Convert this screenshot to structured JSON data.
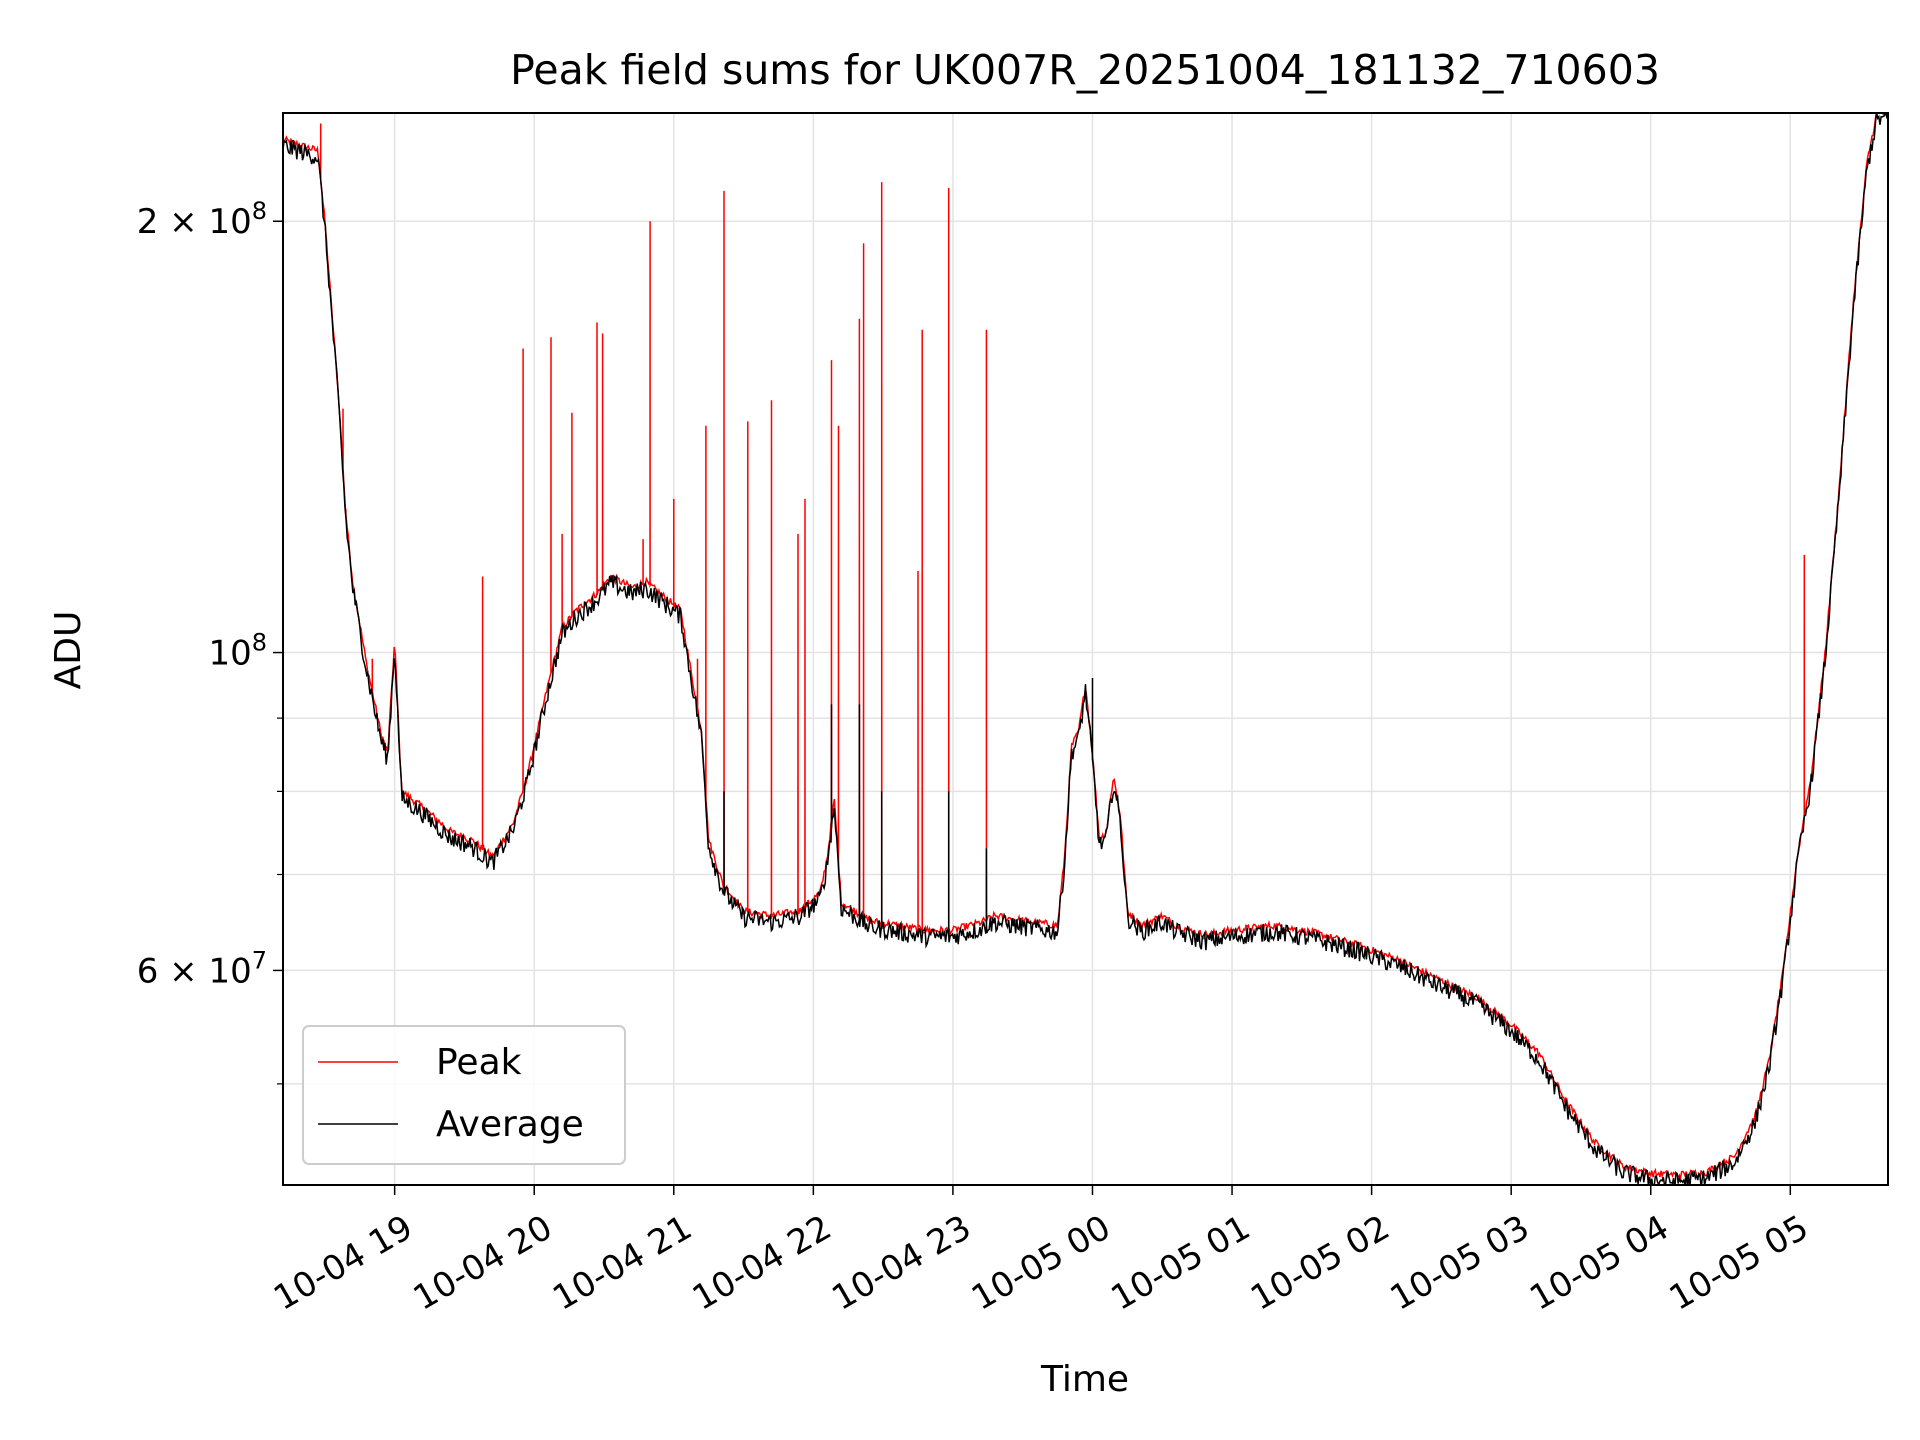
{
  "chart_data": {
    "type": "line",
    "title": "Peak field sums for UK007R_20251004_181132_710603",
    "xlabel": "Time",
    "ylabel": "ADU",
    "yscale": "log",
    "xlim_hours": [
      18.2,
      29.7
    ],
    "ylim": [
      42500000,
      238000000
    ],
    "grid": true,
    "legend_position": "lower-left",
    "x_ticks": [
      {
        "hour": 19,
        "label": "10-04 19"
      },
      {
        "hour": 20,
        "label": "10-04 20"
      },
      {
        "hour": 21,
        "label": "10-04 21"
      },
      {
        "hour": 22,
        "label": "10-04 22"
      },
      {
        "hour": 23,
        "label": "10-04 23"
      },
      {
        "hour": 24,
        "label": "10-05 00"
      },
      {
        "hour": 25,
        "label": "10-05 01"
      },
      {
        "hour": 26,
        "label": "10-05 02"
      },
      {
        "hour": 27,
        "label": "10-05 03"
      },
      {
        "hour": 28,
        "label": "10-05 04"
      },
      {
        "hour": 29,
        "label": "10-05 05"
      }
    ],
    "y_ticks_major": [
      {
        "value": 60000000,
        "mantissa": "6",
        "exp": "7"
      },
      {
        "value": 100000000,
        "mantissa": "",
        "exp": "8"
      },
      {
        "value": 200000000,
        "mantissa": "2",
        "exp": "8"
      }
    ],
    "y_ticks_minor": [
      50000000,
      70000000,
      80000000,
      90000000
    ],
    "x_unit": "hours since 2025-10-04 00:00",
    "series": [
      {
        "name": "Peak",
        "color": "#ff0000",
        "baseline": [
          [
            18.2,
            228000000
          ],
          [
            18.45,
            224000000
          ],
          [
            18.5,
            200000000
          ],
          [
            18.6,
            150000000
          ],
          [
            18.65,
            125000000
          ],
          [
            18.7,
            112000000
          ],
          [
            18.8,
            98000000
          ],
          [
            18.9,
            88000000
          ],
          [
            18.95,
            85000000
          ],
          [
            19.0,
            102000000
          ],
          [
            19.05,
            80000000
          ],
          [
            19.2,
            78000000
          ],
          [
            19.4,
            75000000
          ],
          [
            19.55,
            74000000
          ],
          [
            19.7,
            72000000
          ],
          [
            19.85,
            76000000
          ],
          [
            19.95,
            82000000
          ],
          [
            20.1,
            95000000
          ],
          [
            20.2,
            104000000
          ],
          [
            20.3,
            107000000
          ],
          [
            20.45,
            110000000
          ],
          [
            20.55,
            113000000
          ],
          [
            20.7,
            111000000
          ],
          [
            20.8,
            112000000
          ],
          [
            20.9,
            110000000
          ],
          [
            21.05,
            107000000
          ],
          [
            21.1,
            100000000
          ],
          [
            21.2,
            88000000
          ],
          [
            21.25,
            74000000
          ],
          [
            21.35,
            69000000
          ],
          [
            21.5,
            66000000
          ],
          [
            21.7,
            65500000
          ],
          [
            21.9,
            66000000
          ],
          [
            22.05,
            68000000
          ],
          [
            22.1,
            72000000
          ],
          [
            22.15,
            79000000
          ],
          [
            22.2,
            67000000
          ],
          [
            22.4,
            65000000
          ],
          [
            22.6,
            64500000
          ],
          [
            22.8,
            64000000
          ],
          [
            23.0,
            64000000
          ],
          [
            23.2,
            64800000
          ],
          [
            23.3,
            65500000
          ],
          [
            23.5,
            65000000
          ],
          [
            23.75,
            64500000
          ],
          [
            23.8,
            72000000
          ],
          [
            23.85,
            86000000
          ],
          [
            23.9,
            88000000
          ],
          [
            23.95,
            95000000
          ],
          [
            24.0,
            85000000
          ],
          [
            24.05,
            74000000
          ],
          [
            24.1,
            75000000
          ],
          [
            24.15,
            82000000
          ],
          [
            24.2,
            77000000
          ],
          [
            24.25,
            66000000
          ],
          [
            24.35,
            64500000
          ],
          [
            24.5,
            65500000
          ],
          [
            24.6,
            64500000
          ],
          [
            24.8,
            63500000
          ],
          [
            25.0,
            64000000
          ],
          [
            25.3,
            64500000
          ],
          [
            25.6,
            63700000
          ],
          [
            25.9,
            62500000
          ],
          [
            26.2,
            61000000
          ],
          [
            26.5,
            59000000
          ],
          [
            26.75,
            57500000
          ],
          [
            27.0,
            55000000
          ],
          [
            27.2,
            52500000
          ],
          [
            27.4,
            48500000
          ],
          [
            27.6,
            45500000
          ],
          [
            27.8,
            43800000
          ],
          [
            28.0,
            43300000
          ],
          [
            28.2,
            43200000
          ],
          [
            28.4,
            43400000
          ],
          [
            28.6,
            44500000
          ],
          [
            28.75,
            47500000
          ],
          [
            28.85,
            52000000
          ],
          [
            28.95,
            60000000
          ],
          [
            29.05,
            72000000
          ],
          [
            29.15,
            82000000
          ],
          [
            29.25,
            100000000
          ],
          [
            29.35,
            130000000
          ],
          [
            29.45,
            175000000
          ],
          [
            29.55,
            220000000
          ],
          [
            29.62,
            238000000
          ],
          [
            29.7,
            238000000
          ]
        ],
        "spikes": [
          [
            18.47,
            234000000
          ],
          [
            18.63,
            148000000
          ],
          [
            18.65,
            126000000
          ],
          [
            18.84,
            99000000
          ],
          [
            19.63,
            113000000
          ],
          [
            19.92,
            163000000
          ],
          [
            20.12,
            166000000
          ],
          [
            20.2,
            121000000
          ],
          [
            20.27,
            147000000
          ],
          [
            20.45,
            170000000
          ],
          [
            20.49,
            167000000
          ],
          [
            20.78,
            120000000
          ],
          [
            20.83,
            200000000
          ],
          [
            21.0,
            128000000
          ],
          [
            21.17,
            99000000
          ],
          [
            21.23,
            144000000
          ],
          [
            21.36,
            210000000
          ],
          [
            21.53,
            145000000
          ],
          [
            21.7,
            150000000
          ],
          [
            21.89,
            121000000
          ],
          [
            21.94,
            128000000
          ],
          [
            22.13,
            160000000
          ],
          [
            22.18,
            144000000
          ],
          [
            22.33,
            171000000
          ],
          [
            22.36,
            193000000
          ],
          [
            22.49,
            213000000
          ],
          [
            22.75,
            114000000
          ],
          [
            22.78,
            168000000
          ],
          [
            22.97,
            211000000
          ],
          [
            23.24,
            168000000
          ],
          [
            29.1,
            117000000
          ]
        ]
      },
      {
        "name": "Average",
        "color": "#000000",
        "baseline_offset_factor": 0.99,
        "spikes": [
          [
            22.13,
            92000000
          ],
          [
            22.33,
            92000000
          ],
          [
            22.49,
            80000000
          ],
          [
            22.97,
            80000000
          ],
          [
            21.36,
            80000000
          ],
          [
            23.24,
            73000000
          ],
          [
            24.0,
            96000000
          ]
        ]
      }
    ]
  }
}
